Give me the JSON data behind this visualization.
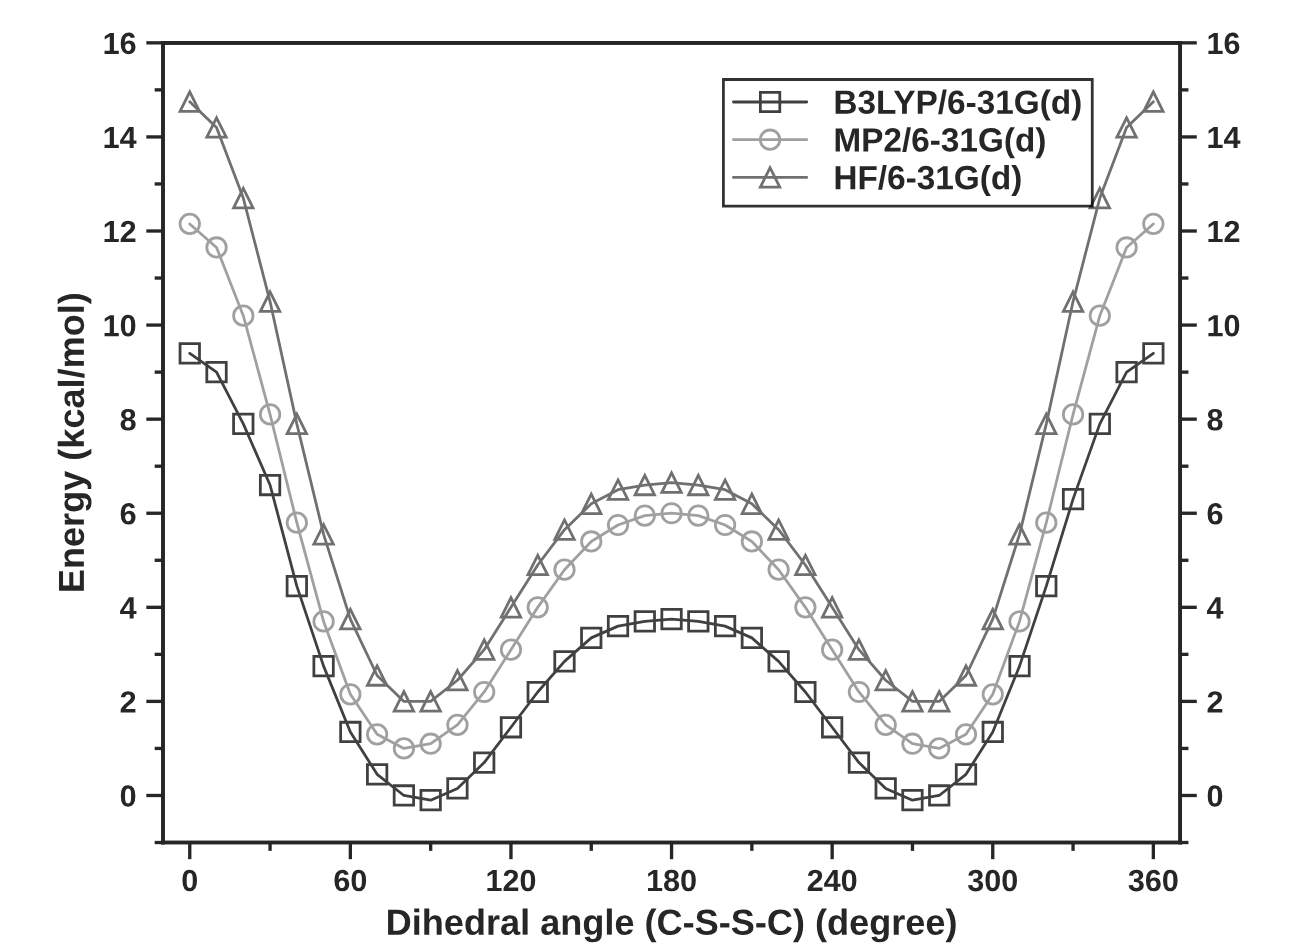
{
  "chart_data": {
    "type": "line",
    "xlabel": "Dihedral angle (C-S-S-C) (degree)",
    "ylabel": "Energy (kcal/mol)",
    "x": [
      0,
      10,
      20,
      30,
      40,
      50,
      60,
      70,
      80,
      90,
      100,
      110,
      120,
      130,
      140,
      150,
      160,
      170,
      180,
      190,
      200,
      210,
      220,
      230,
      240,
      250,
      260,
      270,
      280,
      290,
      300,
      310,
      320,
      330,
      340,
      350,
      360
    ],
    "series": [
      {
        "name": "B3LYP/6-31G(d)",
        "color": "#404040",
        "marker": "square",
        "values": [
          9.4,
          9.0,
          7.9,
          6.6,
          4.45,
          2.75,
          1.35,
          0.45,
          0.0,
          -0.1,
          0.15,
          0.7,
          1.45,
          2.2,
          2.85,
          3.35,
          3.6,
          3.7,
          3.75,
          3.7,
          3.6,
          3.35,
          2.85,
          2.2,
          1.45,
          0.7,
          0.15,
          -0.1,
          0.0,
          0.45,
          1.35,
          2.75,
          4.45,
          6.3,
          7.9,
          9.0,
          9.4
        ]
      },
      {
        "name": "MP2/6-31G(d)",
        "color": "#a0a0a0",
        "marker": "circle",
        "values": [
          12.15,
          11.65,
          10.2,
          8.1,
          5.8,
          3.7,
          2.15,
          1.3,
          1.0,
          1.1,
          1.5,
          2.2,
          3.1,
          4.0,
          4.8,
          5.4,
          5.75,
          5.95,
          6.0,
          5.95,
          5.75,
          5.4,
          4.8,
          4.0,
          3.1,
          2.2,
          1.5,
          1.1,
          1.0,
          1.3,
          2.15,
          3.7,
          5.8,
          8.1,
          10.2,
          11.65,
          12.15
        ]
      },
      {
        "name": "HF/6-31G(d)",
        "color": "#707070",
        "marker": "triangle",
        "values": [
          14.75,
          14.2,
          12.7,
          10.5,
          7.9,
          5.55,
          3.75,
          2.55,
          2.0,
          2.0,
          2.45,
          3.1,
          4.0,
          4.9,
          5.65,
          6.2,
          6.5,
          6.6,
          6.65,
          6.6,
          6.5,
          6.2,
          5.65,
          4.9,
          4.0,
          3.1,
          2.45,
          2.0,
          2.0,
          2.55,
          3.75,
          5.55,
          7.9,
          10.5,
          12.7,
          14.2,
          14.75
        ]
      }
    ],
    "xlim": [
      -10,
      370
    ],
    "xticks": [
      0,
      60,
      120,
      180,
      240,
      300,
      360
    ],
    "ylim": [
      -1,
      16
    ],
    "yticks": [
      0,
      2,
      4,
      6,
      8,
      10,
      12,
      14,
      16
    ],
    "y2lim": [
      -1,
      16
    ],
    "y2ticks": [
      0,
      2,
      4,
      6,
      8,
      10,
      12,
      14,
      16
    ],
    "legend": "top right",
    "grid": false
  }
}
